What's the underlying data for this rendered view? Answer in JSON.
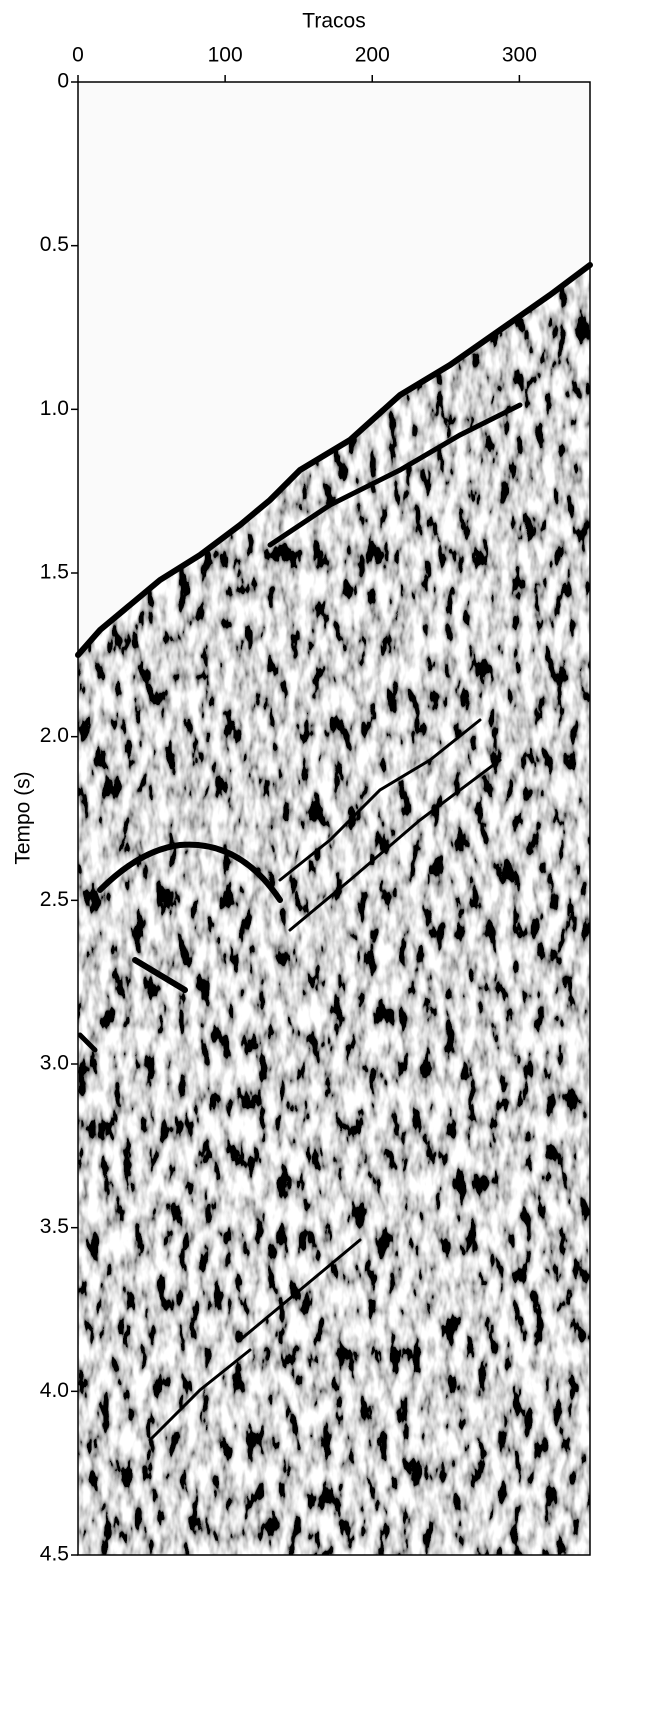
{
  "chart_data": {
    "type": "image",
    "xlabel": "Tracos",
    "ylabel": "Tempo (s)",
    "xlim": [
      0,
      348
    ],
    "xticks": [
      0,
      100,
      200,
      300
    ],
    "ylim": [
      0,
      4.5
    ],
    "yticks": [
      0,
      0.5,
      {
        "value": 1,
        "label": "1.0"
      },
      1.5,
      {
        "value": 2,
        "label": "2.0"
      },
      2.5,
      {
        "value": 3,
        "label": "3.0"
      },
      3.5,
      {
        "value": 4,
        "label": "4.0"
      },
      4.5
    ],
    "y_inverted": true,
    "x_axis_position": "top"
  }
}
